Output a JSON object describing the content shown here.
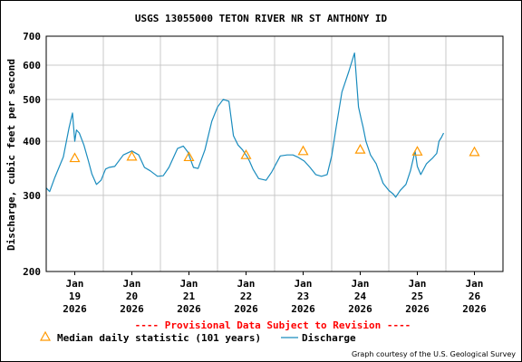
{
  "chart_data": {
    "type": "line",
    "title": "USGS 13055000 TETON RIVER NR ST ANTHONY ID",
    "ylabel": "Discharge, cubic feet per second",
    "xlabel": "",
    "yscale": "log",
    "ylim": [
      200,
      700
    ],
    "ytick_labels": [
      "200",
      "300",
      "400",
      "500",
      "600",
      "700"
    ],
    "ytick_values": [
      200,
      300,
      400,
      500,
      600,
      700
    ],
    "xlim": [
      0,
      8
    ],
    "xticks": [
      {
        "pos": 0.5,
        "label": [
          "Jan",
          "19",
          "2026"
        ]
      },
      {
        "pos": 1.5,
        "label": [
          "Jan",
          "20",
          "2026"
        ]
      },
      {
        "pos": 2.5,
        "label": [
          "Jan",
          "21",
          "2026"
        ]
      },
      {
        "pos": 3.5,
        "label": [
          "Jan",
          "22",
          "2026"
        ]
      },
      {
        "pos": 4.5,
        "label": [
          "Jan",
          "23",
          "2026"
        ]
      },
      {
        "pos": 5.5,
        "label": [
          "Jan",
          "24",
          "2026"
        ]
      },
      {
        "pos": 6.5,
        "label": [
          "Jan",
          "25",
          "2026"
        ]
      },
      {
        "pos": 7.5,
        "label": [
          "Jan",
          "26",
          "2026"
        ]
      }
    ],
    "grid": true,
    "series": [
      {
        "name": "Discharge",
        "color": "#1a8cbe",
        "x": [
          0.0,
          0.06,
          0.15,
          0.3,
          0.4,
          0.46,
          0.5,
          0.53,
          0.58,
          0.66,
          0.74,
          0.8,
          0.88,
          0.96,
          1.04,
          1.1,
          1.2,
          1.35,
          1.5,
          1.62,
          1.72,
          1.82,
          1.95,
          2.05,
          2.15,
          2.3,
          2.4,
          2.48,
          2.58,
          2.66,
          2.78,
          2.9,
          3.0,
          3.1,
          3.2,
          3.28,
          3.36,
          3.44,
          3.52,
          3.56,
          3.62,
          3.72,
          3.85,
          3.95,
          4.1,
          4.22,
          4.32,
          4.4,
          4.52,
          4.62,
          4.72,
          4.82,
          4.92,
          5.0,
          5.08,
          5.18,
          5.3,
          5.4,
          5.47,
          5.52,
          5.55,
          5.6,
          5.68,
          5.78,
          5.9,
          6.0,
          6.08,
          6.12,
          6.2,
          6.3,
          6.38,
          6.46,
          6.5,
          6.56,
          6.66,
          6.76,
          6.84,
          6.88,
          6.92,
          6.96
        ],
        "y": [
          312,
          306,
          330,
          368,
          430,
          465,
          400,
          425,
          418,
          392,
          360,
          336,
          318,
          325,
          345,
          348,
          350,
          372,
          380,
          372,
          348,
          342,
          332,
          333,
          348,
          385,
          390,
          378,
          348,
          346,
          382,
          445,
          480,
          500,
          495,
          412,
          392,
          382,
          368,
          360,
          345,
          328,
          325,
          340,
          370,
          372,
          372,
          368,
          360,
          348,
          335,
          332,
          335,
          370,
          432,
          520,
          580,
          640,
          480,
          448,
          432,
          400,
          372,
          355,
          320,
          308,
          302,
          297,
          308,
          318,
          342,
          380,
          350,
          335,
          355,
          365,
          375,
          400,
          408,
          418
        ]
      }
    ],
    "markers": {
      "name": "Median daily statistic (101 years)",
      "color": "#ff9900",
      "x": [
        0.5,
        1.5,
        2.5,
        3.5,
        4.5,
        5.5,
        6.5,
        7.5
      ],
      "y": [
        366,
        369,
        368,
        372,
        380,
        383,
        379,
        378
      ]
    }
  },
  "provisional_text": "---- Provisional Data Subject to Revision ----",
  "legend": {
    "median_label": "Median daily statistic (101 years)",
    "discharge_label": "Discharge"
  },
  "credit": "Graph courtesy of the U.S. Geological Survey"
}
